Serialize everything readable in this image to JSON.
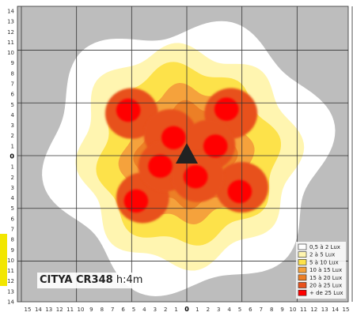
{
  "chart_data": {
    "type": "heatmap",
    "title_model": "CITYA CR348",
    "title_height": "h:4m",
    "x_ticks": [
      "15",
      "14",
      "13",
      "12",
      "11",
      "10",
      "9",
      "8",
      "7",
      "6",
      "5",
      "4",
      "3",
      "2",
      "1",
      "0",
      "1",
      "2",
      "3",
      "4",
      "5",
      "6",
      "7",
      "8",
      "9",
      "10",
      "11",
      "12",
      "13",
      "14",
      "15"
    ],
    "y_ticks": [
      "14",
      "13",
      "12",
      "11",
      "10",
      "9",
      "8",
      "7",
      "6",
      "5",
      "4",
      "3",
      "2",
      "1",
      "0",
      "1",
      "2",
      "3",
      "4",
      "5",
      "6",
      "7",
      "8",
      "9",
      "10",
      "11",
      "12",
      "13",
      "14"
    ],
    "x_range": [
      -15,
      15
    ],
    "y_range": [
      -14,
      14
    ],
    "grid": true,
    "grid_step": 5,
    "legend_position": "bottom-right",
    "legend": [
      {
        "label": "0,5 à 2 Lux",
        "color": "#ffffff"
      },
      {
        "label": "2 à 5 Lux",
        "color": "#fff5b0"
      },
      {
        "label": "5 à 10 Lux",
        "color": "#fde24a"
      },
      {
        "label": "10 à 15 Lux",
        "color": "#f5a23c"
      },
      {
        "label": "15 à 20 Lux",
        "color": "#ec7f26"
      },
      {
        "label": "20 à 25 Lux",
        "color": "#e8511c"
      },
      {
        "label": "+ de 25 Lux",
        "color": "#ff0000"
      }
    ],
    "background_color": "#bdbdbd",
    "luminaire_marker": {
      "x": 0,
      "y": 0,
      "shape": "triangle",
      "color": "#222222"
    }
  }
}
